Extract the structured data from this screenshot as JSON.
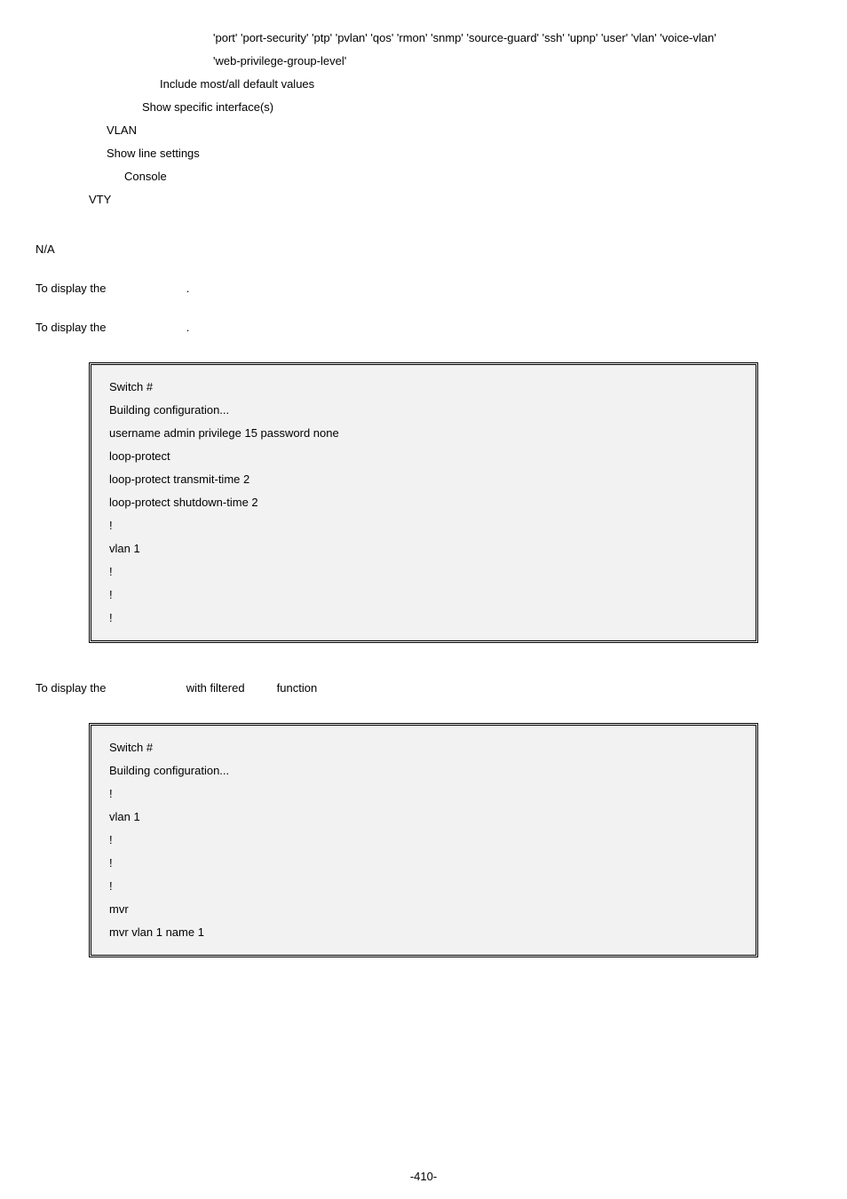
{
  "top": {
    "l1": "'port' 'port-security' 'ptp' 'pvlan' 'qos' 'rmon' 'snmp' 'source-guard' 'ssh' 'upnp' 'user' 'vlan' 'voice-vlan'",
    "l2": "'web-privilege-group-level'",
    "l3": "Include most/all default values",
    "l4": "Show specific interface(s)",
    "l5": "VLAN",
    "l6": "Show line settings",
    "l7": "Console",
    "l8": "VTY"
  },
  "na": "N/A",
  "disp1_a": "To display the",
  "disp1_b": ".",
  "disp2_a": "To display the",
  "disp2_b": ".",
  "box1": {
    "r0": "Switch #",
    "r1": "Building configuration...",
    "r2": "username admin privilege 15 password none",
    "r3": "loop-protect",
    "r4": "loop-protect transmit-time 2",
    "r5": "loop-protect shutdown-time 2",
    "r6": "!",
    "r7": "vlan 1",
    "r8": "!",
    "r9": "!",
    "r10": "!"
  },
  "disp3_a": "To display the",
  "disp3_b": "with filtered",
  "disp3_c": "function",
  "box2": {
    "r0": "Switch #",
    "r1": "Building configuration...",
    "r2": "!",
    "r3": "vlan 1",
    "r4": "!",
    "r5": "!",
    "r6": "!",
    "r7": "mvr",
    "r8": "mvr vlan 1 name 1"
  },
  "pageNumber": "-410-"
}
